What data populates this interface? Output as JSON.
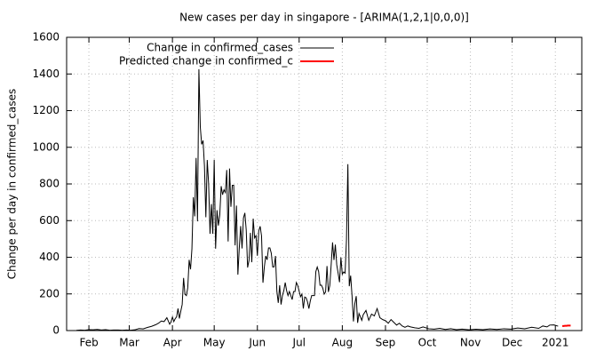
{
  "chart_data": {
    "type": "line",
    "title": "New cases per day in singapore -  [ARIMA(1,2,1|0,0,0)]",
    "y_label": "Change per day in confirmed_cases",
    "xlim": [
      16,
      386
    ],
    "ylim": [
      0,
      1600
    ],
    "xticks": [
      {
        "value": 32,
        "label": "Feb"
      },
      {
        "value": 61,
        "label": "Mar"
      },
      {
        "value": 92,
        "label": "Apr"
      },
      {
        "value": 122,
        "label": "May"
      },
      {
        "value": 153,
        "label": "Jun"
      },
      {
        "value": 183,
        "label": "Jul"
      },
      {
        "value": 214,
        "label": "Aug"
      },
      {
        "value": 245,
        "label": "Sep"
      },
      {
        "value": 275,
        "label": "Oct"
      },
      {
        "value": 306,
        "label": "Nov"
      },
      {
        "value": 336,
        "label": "Dec"
      },
      {
        "value": 367,
        "label": "2021"
      }
    ],
    "yticks": [
      0,
      200,
      400,
      600,
      800,
      1000,
      1200,
      1400,
      1600
    ],
    "grid": true,
    "legend": "top-left",
    "series": [
      {
        "name": "Change in confirmed_cases",
        "color": "#000000",
        "x": [
          23,
          26,
          29,
          32,
          35,
          38,
          41,
          44,
          47,
          50,
          53,
          56,
          59,
          62,
          65,
          68,
          71,
          74,
          77,
          80,
          82,
          84,
          86,
          88,
          90,
          91,
          92,
          93,
          94,
          95,
          96,
          97,
          98,
          99,
          100,
          101,
          102,
          103,
          104,
          105,
          106,
          107,
          108,
          109,
          110,
          111,
          112,
          113,
          114,
          115,
          116,
          117,
          118,
          119,
          120,
          121,
          122,
          123,
          124,
          125,
          126,
          127,
          128,
          129,
          130,
          131,
          132,
          133,
          134,
          135,
          136,
          137,
          138,
          139,
          140,
          141,
          142,
          143,
          144,
          145,
          146,
          147,
          148,
          149,
          150,
          151,
          152,
          153,
          154,
          155,
          156,
          157,
          158,
          159,
          160,
          161,
          162,
          163,
          164,
          165,
          166,
          167,
          168,
          169,
          170,
          171,
          172,
          173,
          174,
          175,
          176,
          177,
          178,
          179,
          180,
          181,
          182,
          183,
          184,
          185,
          186,
          187,
          188,
          189,
          190,
          191,
          192,
          193,
          194,
          195,
          196,
          197,
          198,
          199,
          200,
          201,
          202,
          203,
          204,
          205,
          206,
          207,
          208,
          209,
          210,
          211,
          212,
          213,
          214,
          215,
          216,
          217,
          218,
          219,
          220,
          221,
          222,
          223,
          224,
          225,
          226,
          227,
          228,
          229,
          231,
          233,
          235,
          237,
          239,
          241,
          243,
          245,
          247,
          249,
          251,
          253,
          255,
          257,
          259,
          261,
          263,
          266,
          269,
          272,
          276,
          280,
          284,
          288,
          292,
          296,
          300,
          305,
          310,
          315,
          320,
          325,
          330,
          335,
          340,
          345,
          350,
          355,
          358,
          361,
          363,
          366,
          369
        ],
        "values": [
          1,
          3,
          2,
          5,
          4,
          6,
          3,
          5,
          2,
          3,
          3,
          2,
          3,
          2,
          4,
          11,
          9,
          17,
          23,
          32,
          40,
          52,
          49,
          70,
          35,
          47,
          74,
          49,
          65,
          75,
          120,
          66,
          106,
          142,
          287,
          198,
          191,
          233,
          386,
          334,
          447,
          728,
          623,
          942,
          596,
          1426,
          1111,
          1016,
          1037,
          897,
          618,
          931,
          799,
          528,
          690,
          528,
          932,
          447,
          657,
          573,
          632,
          788,
          741,
          768,
          753,
          876,
          486,
          884,
          675,
          793,
          793,
          465,
          682,
          305,
          451,
          570,
          448,
          614,
          642,
          548,
          344,
          383,
          533,
          373,
          611,
          506,
          518,
          408,
          544,
          569,
          516,
          261,
          347,
          407,
          386,
          451,
          451,
          422,
          347,
          347,
          407,
          214,
          151,
          247,
          142,
          191,
          218,
          262,
          218,
          191,
          213,
          191,
          169,
          213,
          213,
          262,
          246,
          215,
          185,
          199,
          120,
          183,
          179,
          157,
          120,
          161,
          191,
          191,
          191,
          322,
          347,
          322,
          247,
          248,
          231,
          199,
          211,
          352,
          211,
          245,
          359,
          481,
          385,
          469,
          359,
          313,
          264,
          399,
          307,
          320,
          313,
          495,
          908,
          242,
          300,
          188,
          50,
          147,
          188,
          42,
          93,
          75,
          56,
          86,
          110,
          56,
          90,
          80,
          120,
          70,
          60,
          54,
          40,
          60,
          45,
          30,
          40,
          25,
          18,
          25,
          20,
          15,
          12,
          20,
          10,
          8,
          12,
          6,
          10,
          5,
          8,
          4,
          7,
          5,
          9,
          6,
          10,
          8,
          14,
          10,
          18,
          12,
          25,
          20,
          30,
          31,
          24
        ]
      },
      {
        "name": "Predicted change in confirmed_c",
        "color": "#ff0000",
        "x": [
          372,
          373,
          374,
          375,
          376,
          377,
          378
        ],
        "values": [
          25,
          25,
          26,
          26,
          27,
          27,
          27
        ]
      }
    ]
  }
}
